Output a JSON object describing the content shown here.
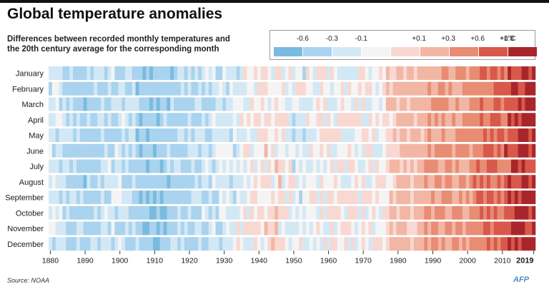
{
  "title": "Global temperature anomalies",
  "subtitle": "Differences between recorded monthly temperatures and the 20th century average for the corresponding month",
  "source": "Source: NOAA",
  "logo": "AFP",
  "legend": {
    "bins": [
      {
        "label": "-0.6",
        "color": "#79bbe0"
      },
      {
        "label": "-0.3",
        "color": "#a9d3ee"
      },
      {
        "label": "-0.1",
        "color": "#d3e8f5"
      },
      {
        "label": "",
        "color": "#f4f4f4"
      },
      {
        "label": "+0.1",
        "color": "#f8d8d1"
      },
      {
        "label": "+0.3",
        "color": "#f2b6a4"
      },
      {
        "label": "+0.6",
        "color": "#e88c73"
      },
      {
        "label": "+0.8",
        "color": "#d8584a"
      },
      {
        "label": "+1°C",
        "color": "#a8262b"
      }
    ]
  },
  "chart_data": {
    "type": "heatmap",
    "x_axis": {
      "start_year": 1880,
      "end_year": 2019,
      "ticks": [
        "1880",
        "1890",
        "1900",
        "1910",
        "1920",
        "1930",
        "1940",
        "1950",
        "1960",
        "1970",
        "1980",
        "1990",
        "2000",
        "2010",
        "2019"
      ]
    },
    "y_axis": {
      "categories": [
        "January",
        "February",
        "March",
        "April",
        "May",
        "June",
        "July",
        "August",
        "September",
        "October",
        "November",
        "December"
      ]
    },
    "anomaly_anchors_C": {
      "years": [
        1880,
        1890,
        1900,
        1905,
        1910,
        1915,
        1920,
        1925,
        1930,
        1935,
        1940,
        1945,
        1950,
        1955,
        1960,
        1965,
        1970,
        1975,
        1980,
        1985,
        1990,
        1995,
        2000,
        2005,
        2010,
        2015,
        2019
      ],
      "values": [
        -0.12,
        -0.3,
        -0.13,
        -0.32,
        -0.38,
        -0.3,
        -0.24,
        -0.18,
        -0.12,
        -0.08,
        0.05,
        0.1,
        -0.06,
        -0.05,
        0.02,
        -0.02,
        0.04,
        0.02,
        0.27,
        0.26,
        0.43,
        0.46,
        0.5,
        0.68,
        0.74,
        0.95,
        0.95
      ]
    }
  }
}
